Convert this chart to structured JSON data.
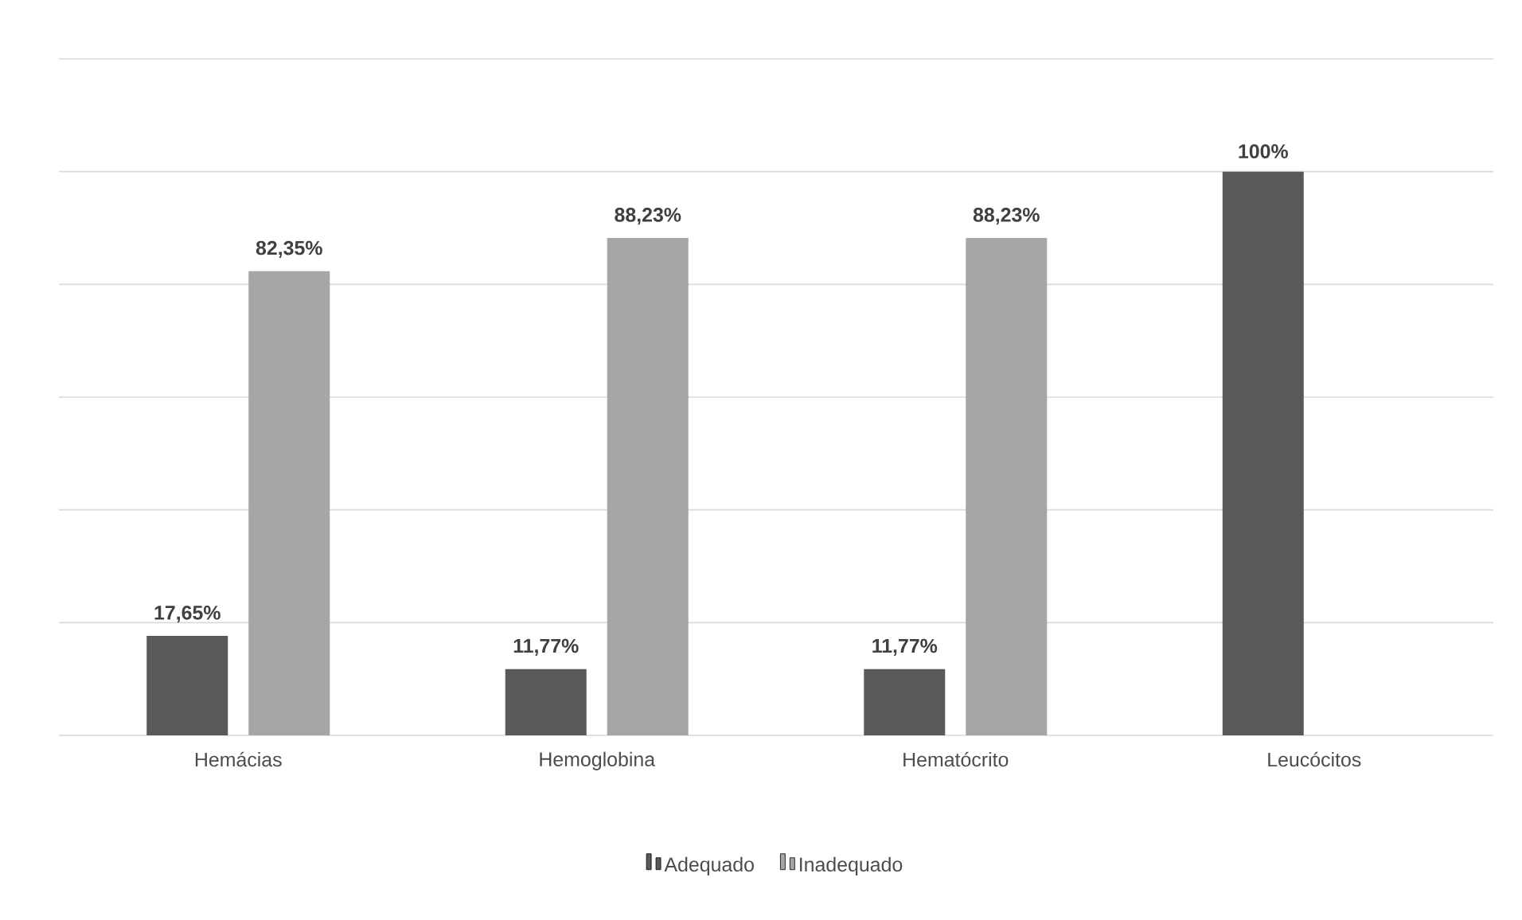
{
  "chart_data": {
    "type": "bar",
    "categories": [
      "Hemácias",
      "Hemoglobina",
      "Hematócrito",
      "Leucócitos"
    ],
    "series": [
      {
        "name": "Adequado",
        "color": "#595959",
        "values": [
          17.65,
          11.77,
          11.77,
          100
        ],
        "value_labels": [
          "17,65%",
          "11,77%",
          "11,77%",
          "100%"
        ]
      },
      {
        "name": "Inadequado",
        "color": "#a6a6a6",
        "values": [
          82.35,
          88.23,
          88.23,
          null
        ],
        "value_labels": [
          "82,35%",
          "88,23%",
          "88,23%",
          null
        ]
      }
    ],
    "ylim": [
      0,
      120
    ],
    "yticks": [
      {
        "value": 0,
        "label": null
      },
      {
        "value": 20,
        "label": null
      },
      {
        "value": 40,
        "label": null
      },
      {
        "value": 60,
        "label": null
      },
      {
        "value": 80,
        "label": null
      },
      {
        "value": 100,
        "label": null
      },
      {
        "value": 120,
        "label": null
      }
    ],
    "tick_labels": "x",
    "grid": "y",
    "legend": "bottom"
  }
}
